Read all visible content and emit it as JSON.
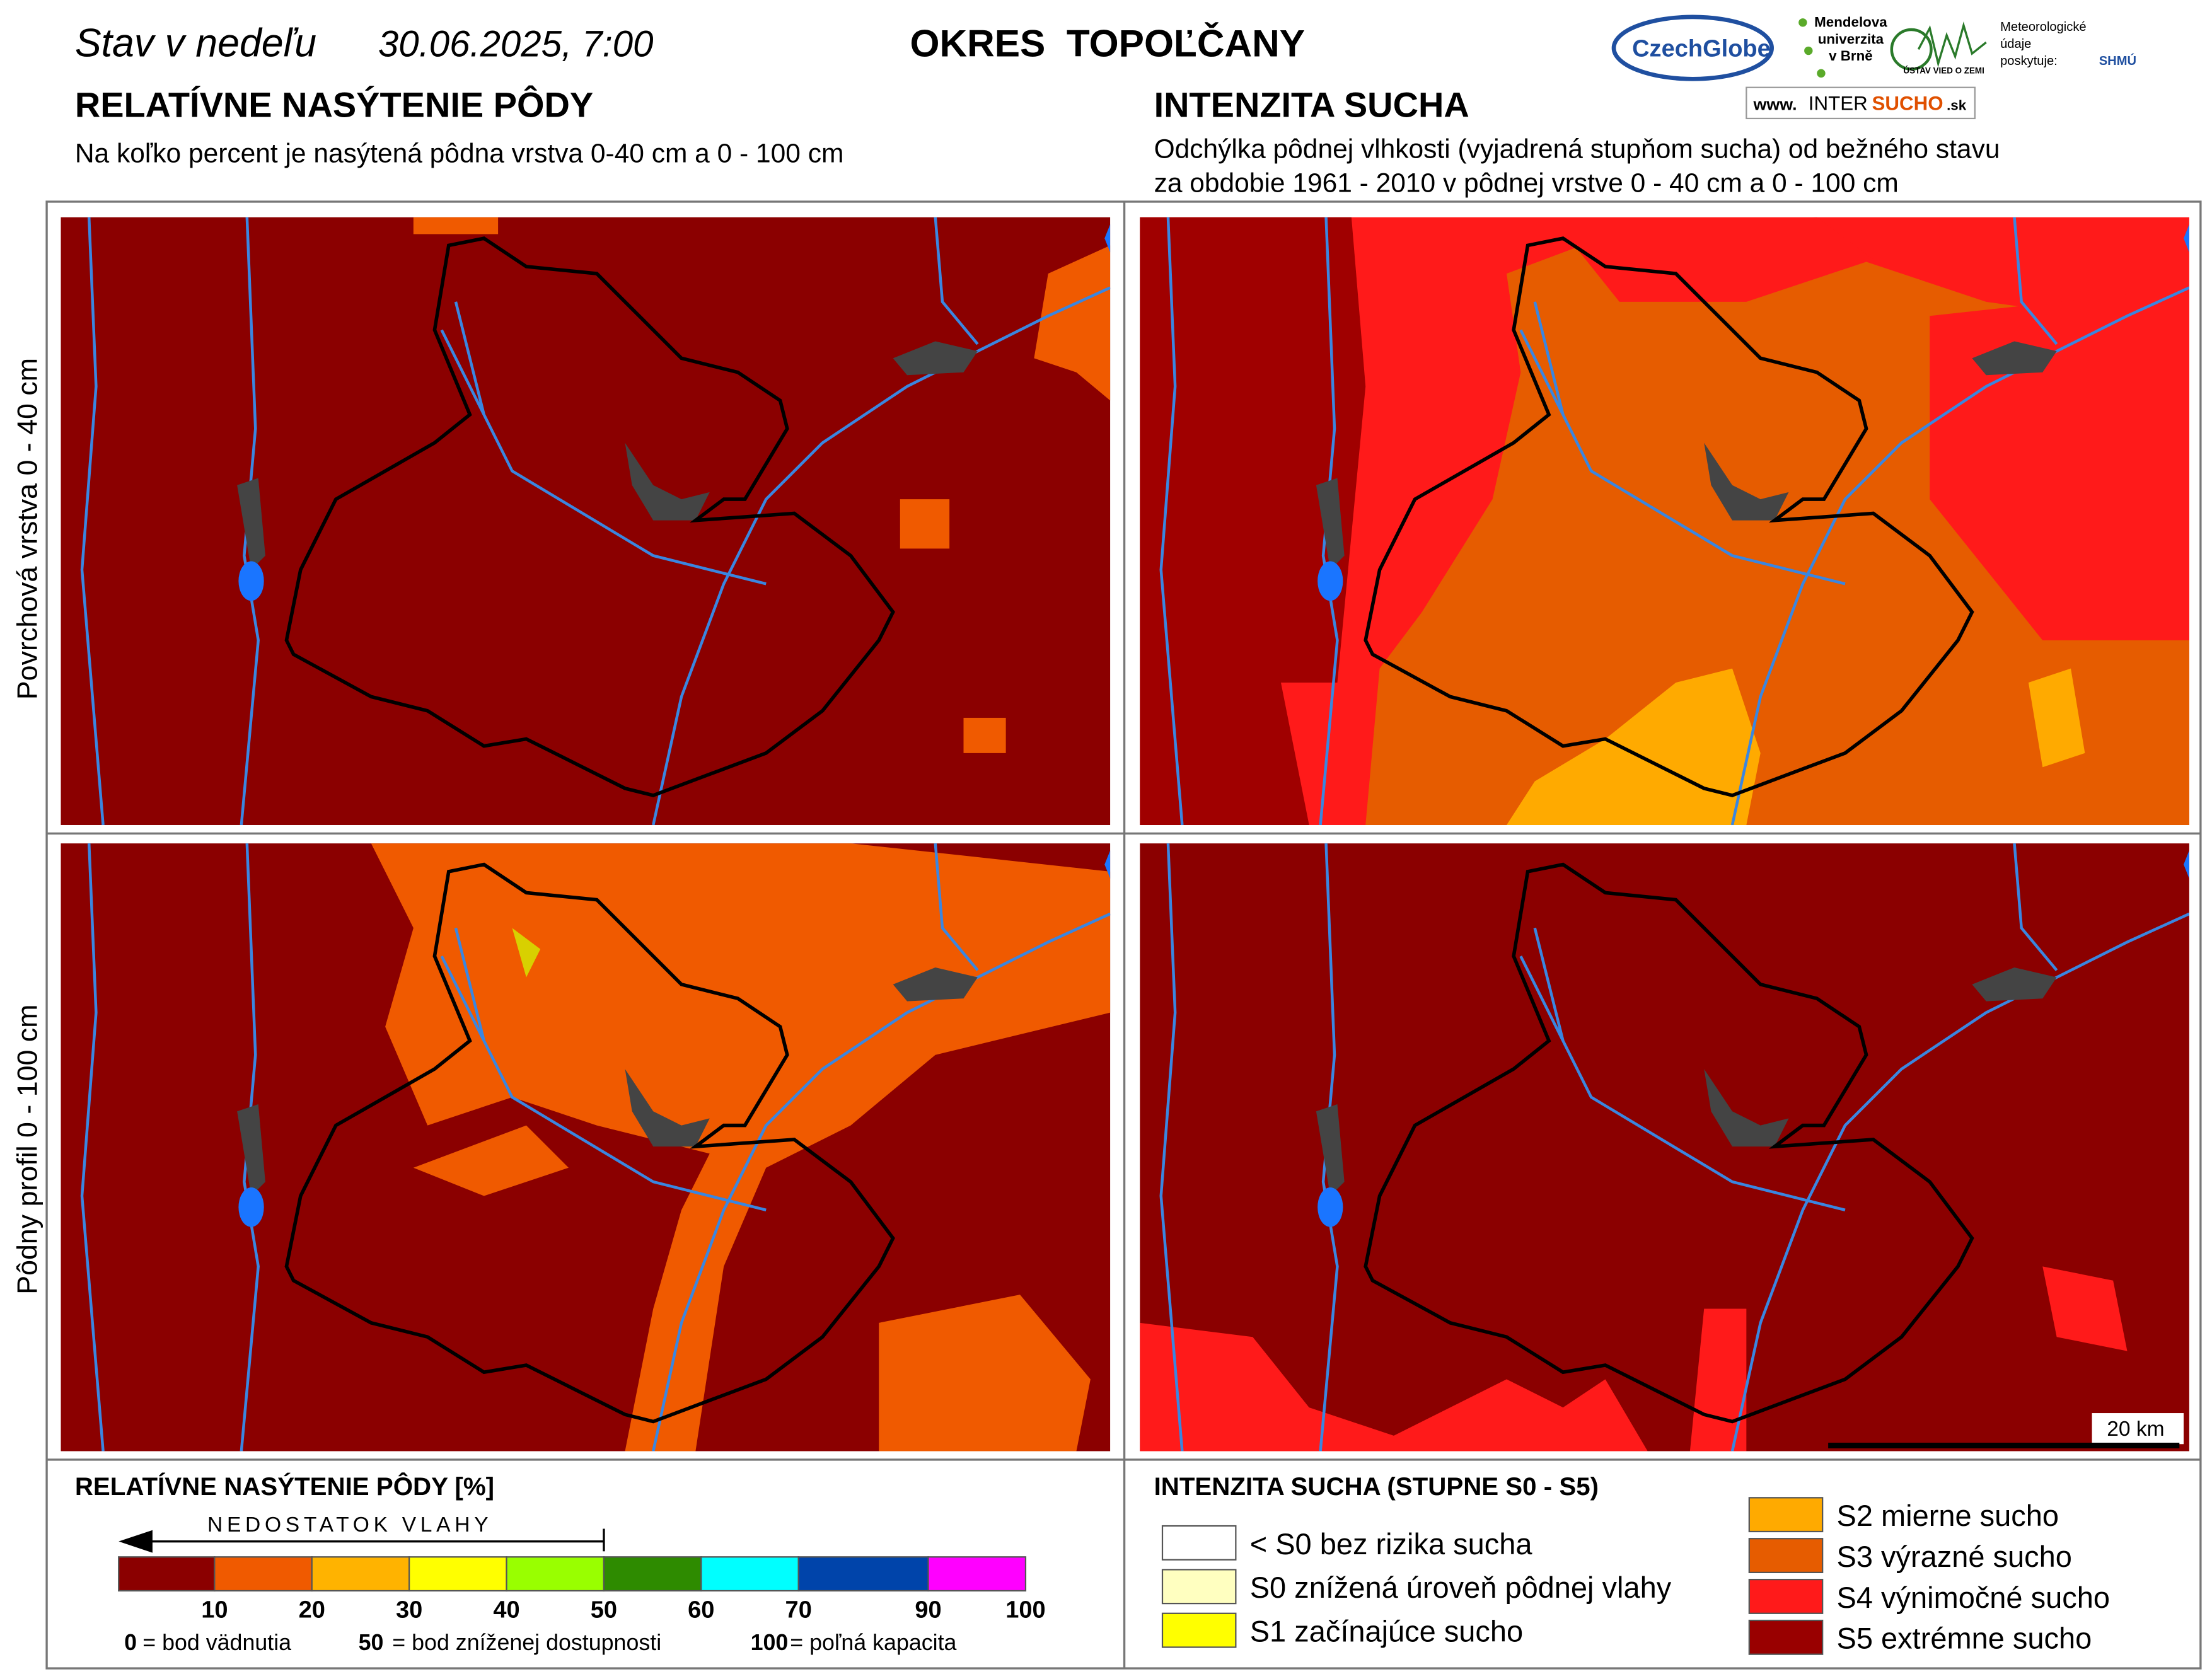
{
  "header": {
    "date_prefix": "Stav v nedeľu",
    "date": "30.06.2025, 7:00",
    "district": "OKRES  TOPOĽČANY",
    "logos": {
      "czechglobe": "CzechGlobe",
      "mendel": [
        "Mendelova",
        "univerzita",
        "v Brně"
      ],
      "uvz": "ÚSTAV VIED O ZEMI",
      "meteo": [
        "Meteorologické",
        "údaje",
        "poskytuje:"
      ],
      "shmu": "SHMÚ",
      "web_prefix": "www.",
      "web_main": "INTER",
      "web_accent": "SUCHO",
      "web_suffix": ".sk"
    }
  },
  "left": {
    "title": "RELATÍVNE NASÝTENIE PÔDY",
    "subtitle": "Na koľko percent je nasýtená pôdna vrstva 0-40 cm a 0 - 100 cm"
  },
  "right": {
    "title": "INTENZITA SUCHA",
    "subtitle": [
      "Odchýlka pôdnej vlhkosti (vyjadrená stupňom sucha) od bežného stavu",
      "za obdobie 1961 - 2010 v pôdnej vrstve 0 - 40 cm a 0 - 100 cm"
    ]
  },
  "rows": [
    "Povrchová vrstva 0 - 40 cm",
    "Pôdny profil 0 - 100 cm"
  ],
  "scale_label": "20 km",
  "legend_left": {
    "title": "RELATÍVNE NASÝTENIE PÔDY [%]",
    "arrow_label": "NEDOSTATOK VLAHY",
    "ticks": [
      "10",
      "20",
      "30",
      "40",
      "50",
      "60",
      "70",
      "90",
      "100"
    ],
    "notes": [
      {
        "key": "0",
        "text": "= bod vädnutia"
      },
      {
        "key": "50",
        "text": "= bod zníženej dostupnosti"
      },
      {
        "key": "100",
        "text": "= poľná kapacita"
      }
    ]
  },
  "legend_right": {
    "title": "INTENZITA SUCHA (STUPNE S0 - S5)",
    "items": [
      "< S0 bez rizika sucha",
      "S0 znížená úroveň pôdnej vlahy",
      "S1 začínajúce sucho",
      "S2 mierne sucho",
      "S3 výrazné sucho",
      "S4 výnimočné sucho",
      "S5 extrémne sucho"
    ]
  }
}
